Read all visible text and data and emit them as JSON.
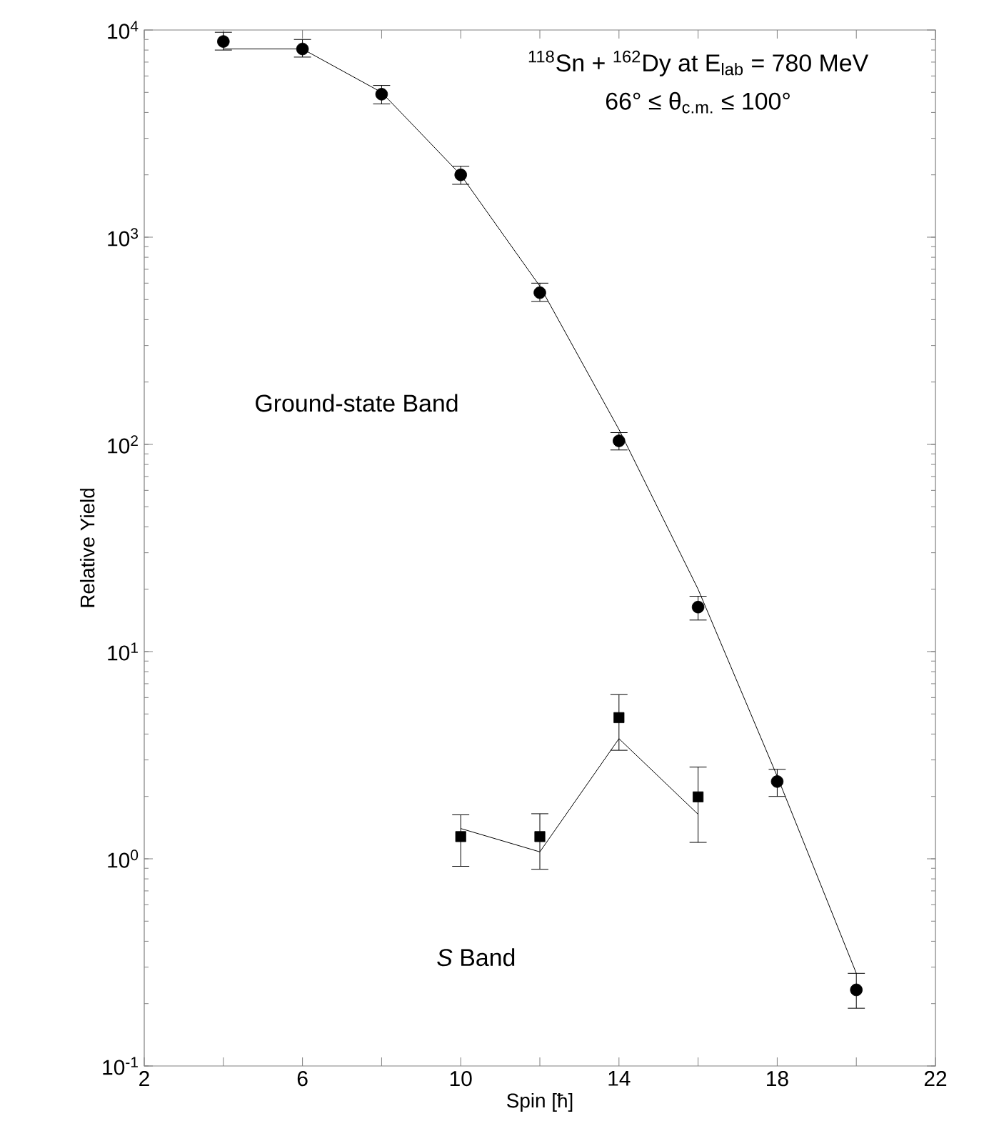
{
  "chart_data": {
    "type": "scatter",
    "xlabel": "Spin  [ħ]",
    "ylabel": "Relative Yield",
    "log": "y",
    "grid": false,
    "annotations": [
      "$^{118}$Sn + $^{162}$Dy at E$_{lab}$ = 780 MeV",
      "66° ≤ θ$_{c.m.}$ ≤ 100°",
      "Ground-state Band",
      "*S* Band"
    ],
    "xlim": [
      2,
      22
    ],
    "ylim": [
      0.1,
      10000
    ],
    "xticks": [
      2,
      {
        "value": 4,
        "label": null
      },
      6,
      {
        "value": 8,
        "label": null
      },
      10,
      {
        "value": 12,
        "label": null
      },
      14,
      {
        "value": 16,
        "label": null
      },
      18,
      {
        "value": 20,
        "label": null
      },
      22
    ],
    "yticks": [
      {
        "value": 0.1,
        "label": "10$^{-1}$"
      },
      {
        "value": 1,
        "label": "10$^{0}$"
      },
      {
        "value": 10,
        "label": "10$^{1}$"
      },
      {
        "value": 100,
        "label": "10$^{2}$"
      },
      {
        "value": 1000,
        "label": "10$^{3}$"
      },
      {
        "value": 10000,
        "label": "10$^{4}$"
      }
    ],
    "series": [
      {
        "type": "line",
        "color": "#000000",
        "marker": "none",
        "x": [
          4,
          6,
          8,
          10,
          12,
          14,
          16,
          18,
          20
        ],
        "values": [
          8100,
          8100,
          5000,
          2000,
          580,
          118,
          20,
          2.5,
          0.28
        ]
      },
      {
        "color": "#000000",
        "marker": "circle",
        "x": [
          4,
          6,
          8,
          10,
          12,
          14,
          16,
          18,
          20
        ],
        "values": [
          8800,
          8100,
          4900,
          2000,
          540,
          104,
          16.4,
          2.36,
          0.233
        ],
        "errors": [
          [
            8000,
            9750
          ],
          [
            7400,
            9000
          ],
          [
            4400,
            5400
          ],
          [
            1800,
            2200
          ],
          [
            490,
            600
          ],
          [
            94,
            114
          ],
          [
            14.2,
            18.5
          ],
          [
            2.0,
            2.7
          ],
          [
            0.19,
            0.28
          ]
        ]
      },
      {
        "type": "line",
        "color": "#000000",
        "marker": "none",
        "x": [
          10,
          12,
          14,
          16
        ],
        "values": [
          1.4,
          1.08,
          3.8,
          1.64
        ]
      },
      {
        "color": "#000000",
        "marker": "square",
        "x": [
          10,
          12,
          14,
          16
        ],
        "values": [
          1.28,
          1.28,
          4.8,
          1.99
        ],
        "errors": [
          [
            0.92,
            1.63
          ],
          [
            0.89,
            1.65
          ],
          [
            3.34,
            6.2
          ],
          [
            1.2,
            2.77
          ]
        ]
      }
    ]
  }
}
